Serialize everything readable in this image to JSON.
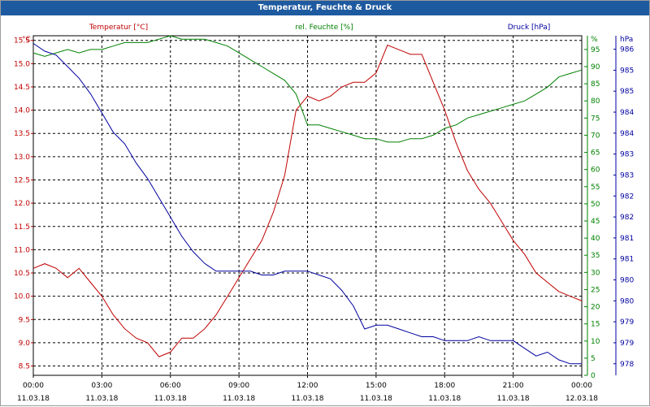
{
  "window": {
    "title": "Temperatur, Feuchte & Druck"
  },
  "legend": {
    "temperature": "Temperatur [°C]",
    "humidity": "rel. Feuchte [%]",
    "pressure": "Druck [hPa]"
  },
  "axes": {
    "left_unit": "°C",
    "right1_unit": "%",
    "right2_unit": "hPa",
    "left_ticks": [
      "15.5",
      "15.0",
      "14.5",
      "14.0",
      "13.5",
      "13.0",
      "12.5",
      "12.0",
      "11.5",
      "11.0",
      "10.5",
      "10.0",
      "9.5",
      "9.0",
      "8.5"
    ],
    "right1_ticks": [
      "95",
      "90",
      "85",
      "80",
      "75",
      "70",
      "65",
      "60",
      "55",
      "50",
      "45",
      "40",
      "35",
      "30",
      "25",
      "20",
      "15",
      "10",
      "5",
      "0"
    ],
    "right2_ticks": [
      "986",
      "985",
      "985",
      "984",
      "984",
      "983",
      "983",
      "982",
      "982",
      "981",
      "981",
      "980",
      "980",
      "979",
      "979",
      "978"
    ],
    "x_times": [
      "00:00",
      "03:00",
      "06:00",
      "09:00",
      "12:00",
      "15:00",
      "18:00",
      "21:00",
      "00:00"
    ],
    "x_dates": [
      "11.03.18",
      "11.03.18",
      "11.03.18",
      "11.03.18",
      "11.03.18",
      "11.03.18",
      "11.03.18",
      "11.03.18",
      "12.03.18"
    ]
  },
  "colors": {
    "temperature": "#c00000",
    "humidity": "#008000",
    "pressure": "#0000a0",
    "title_bar": "#1e5aa0"
  },
  "chart_data": {
    "type": "line",
    "title": "Temperatur, Feuchte & Druck",
    "grid": true,
    "x_unit": "hours from 11.03.18 00:00",
    "xlim": [
      0,
      24
    ],
    "series": [
      {
        "name": "Temperatur [°C]",
        "axis": "left",
        "ylim": [
          8.3,
          15.6
        ],
        "x": [
          0,
          0.5,
          1,
          1.5,
          2,
          2.5,
          3,
          3.5,
          4,
          4.5,
          5,
          5.5,
          6,
          6.5,
          7,
          7.5,
          8,
          8.5,
          9,
          9.5,
          10,
          10.5,
          11,
          11.5,
          12,
          12.5,
          13,
          13.5,
          14,
          14.5,
          15,
          15.5,
          16,
          16.5,
          17,
          17.5,
          18,
          18.5,
          19,
          19.5,
          20,
          20.5,
          21,
          21.5,
          22,
          22.5,
          23,
          23.5,
          24
        ],
        "values": [
          10.6,
          10.7,
          10.6,
          10.4,
          10.6,
          10.3,
          10.0,
          9.6,
          9.3,
          9.1,
          9.0,
          8.7,
          8.8,
          9.1,
          9.1,
          9.3,
          9.6,
          10.0,
          10.4,
          10.8,
          11.2,
          11.8,
          12.6,
          14.0,
          14.3,
          14.2,
          14.3,
          14.5,
          14.6,
          14.6,
          14.8,
          15.4,
          15.3,
          15.2,
          15.2,
          14.6,
          14.0,
          13.3,
          12.7,
          12.3,
          12.0,
          11.6,
          11.2,
          10.9,
          10.5,
          10.3,
          10.1,
          10.0,
          9.9
        ]
      },
      {
        "name": "rel. Feuchte [%]",
        "axis": "right1",
        "ylim": [
          0,
          99
        ],
        "x": [
          0,
          0.5,
          1,
          1.5,
          2,
          2.5,
          3,
          3.5,
          4,
          4.5,
          5,
          5.5,
          6,
          6.5,
          7,
          7.5,
          8,
          8.5,
          9,
          9.5,
          10,
          10.5,
          11,
          11.5,
          12,
          12.5,
          13,
          13.5,
          14,
          14.5,
          15,
          15.5,
          16,
          16.5,
          17,
          17.5,
          18,
          18.5,
          19,
          19.5,
          20,
          20.5,
          21,
          21.5,
          22,
          22.5,
          23,
          23.5,
          24
        ],
        "values": [
          94,
          93,
          94,
          95,
          94,
          95,
          95,
          96,
          97,
          97,
          97,
          98,
          99,
          98,
          98,
          98,
          97,
          96,
          94,
          92,
          90,
          88,
          86,
          82,
          73,
          73,
          72,
          71,
          70,
          69,
          69,
          68,
          68,
          69,
          69,
          70,
          72,
          73,
          75,
          76,
          77,
          78,
          79,
          80,
          82,
          84,
          87,
          88,
          89
        ]
      },
      {
        "name": "Druck [hPa]",
        "axis": "right2",
        "ylim": [
          977.7,
          986.5
        ],
        "x": [
          0,
          0.5,
          1,
          1.5,
          2,
          2.5,
          3,
          3.5,
          4,
          4.5,
          5,
          5.5,
          6,
          6.5,
          7,
          7.5,
          8,
          8.5,
          9,
          9.5,
          10,
          10.5,
          11,
          11.5,
          12,
          12.5,
          13,
          13.5,
          14,
          14.5,
          15,
          15.5,
          16,
          16.5,
          17,
          17.5,
          18,
          18.5,
          19,
          19.5,
          20,
          20.5,
          21,
          21.5,
          22,
          22.5,
          23,
          23.5,
          24
        ],
        "values": [
          986.3,
          986.1,
          986.0,
          985.7,
          985.4,
          985.0,
          984.5,
          984.0,
          983.7,
          983.2,
          982.8,
          982.3,
          981.8,
          981.3,
          980.9,
          980.6,
          980.4,
          980.4,
          980.4,
          980.4,
          980.3,
          980.3,
          980.4,
          980.4,
          980.4,
          980.3,
          980.2,
          979.9,
          979.5,
          978.9,
          979.0,
          979.0,
          978.9,
          978.8,
          978.7,
          978.7,
          978.6,
          978.6,
          978.6,
          978.7,
          978.6,
          978.6,
          978.6,
          978.4,
          978.2,
          978.3,
          978.1,
          978.0,
          978.0
        ]
      }
    ]
  }
}
